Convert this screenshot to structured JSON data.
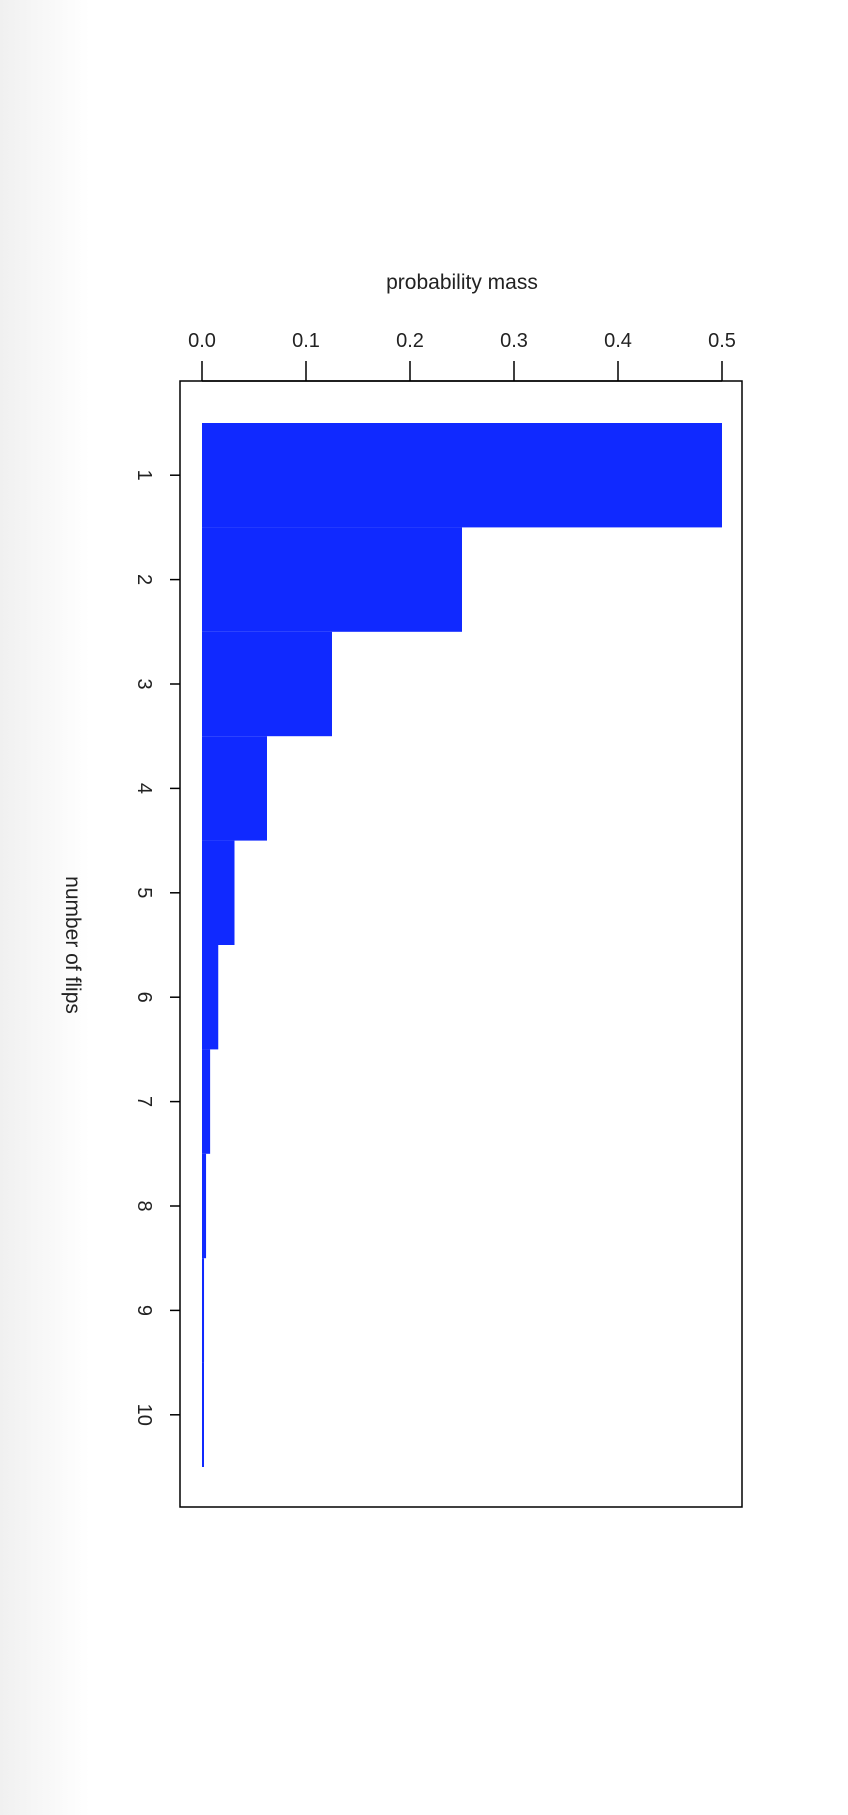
{
  "chart_data": {
    "type": "bar",
    "orientation": "horizontal",
    "title": "",
    "xlabel": "probability mass",
    "ylabel": "number of flips",
    "categories": [
      "1",
      "2",
      "3",
      "4",
      "5",
      "6",
      "7",
      "8",
      "9",
      "10"
    ],
    "values": [
      0.5,
      0.25,
      0.125,
      0.0625,
      0.03125,
      0.015625,
      0.0078125,
      0.00390625,
      0.001953125,
      0.0009765625
    ],
    "x_ticks": [
      "0.0",
      "0.1",
      "0.2",
      "0.3",
      "0.4",
      "0.5"
    ],
    "xlim": [
      0,
      0.5
    ],
    "bar_color": "#1029ff",
    "grid": false,
    "legend": "none"
  }
}
